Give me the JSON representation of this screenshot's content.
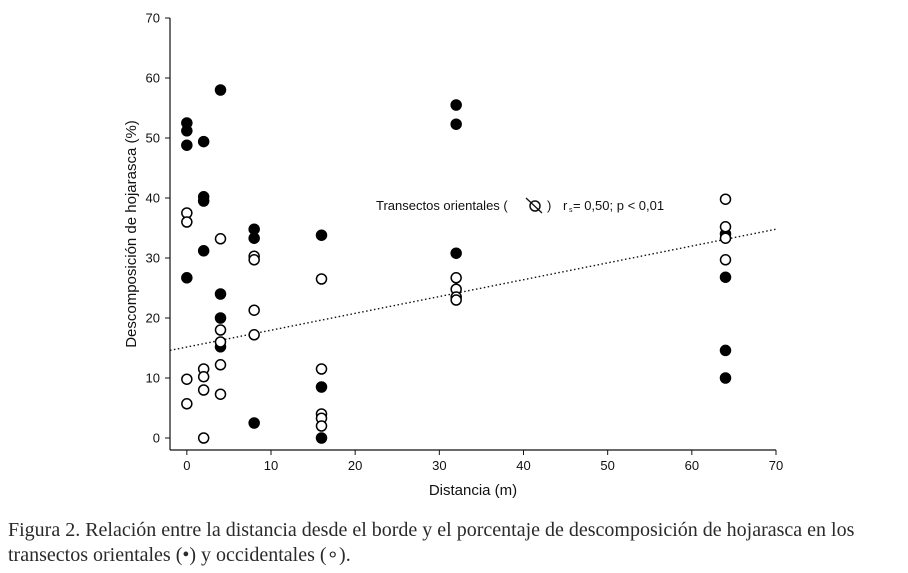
{
  "caption": "Figura 2. Relación entre la distancia desde el borde y el porcentaje de descomposición de hojarasca en los transectos orientales (•) y occidentales (∘).",
  "chart_data": {
    "type": "scatter",
    "xlabel": "Distancia (m)",
    "ylabel": "Descomposición de hojarasca (%)",
    "xlim": [
      -2,
      70
    ],
    "ylim": [
      -2,
      70
    ],
    "xticks": [
      "0",
      "10",
      "20",
      "30",
      "40",
      "50",
      "60",
      "70"
    ],
    "yticks": [
      "0",
      "10",
      "20",
      "30",
      "40",
      "50",
      "60",
      "70"
    ],
    "grid": false,
    "series": [
      {
        "marker": "filled-circle",
        "color": "#000000",
        "points": [
          [
            0,
            52.5
          ],
          [
            0,
            51.2
          ],
          [
            0,
            48.8
          ],
          [
            0,
            26.7
          ],
          [
            2,
            49.4
          ],
          [
            2,
            40.2
          ],
          [
            2,
            39.5
          ],
          [
            2,
            31.2
          ],
          [
            4,
            58.0
          ],
          [
            4,
            24.0
          ],
          [
            4,
            20.0
          ],
          [
            4,
            15.2
          ],
          [
            8,
            34.8
          ],
          [
            8,
            33.3
          ],
          [
            8,
            2.5
          ],
          [
            16,
            33.8
          ],
          [
            16,
            8.5
          ],
          [
            16,
            0.0
          ],
          [
            32,
            55.5
          ],
          [
            32,
            52.3
          ],
          [
            32,
            30.8
          ],
          [
            64,
            34.0
          ],
          [
            64,
            26.8
          ],
          [
            64,
            14.6
          ],
          [
            64,
            10.0
          ]
        ]
      },
      {
        "marker": "open-circle",
        "color": "#000000",
        "points": [
          [
            0,
            37.5
          ],
          [
            0,
            36.0
          ],
          [
            0,
            9.8
          ],
          [
            0,
            5.7
          ],
          [
            2,
            11.5
          ],
          [
            2,
            10.2
          ],
          [
            2,
            8.0
          ],
          [
            2,
            0.0
          ],
          [
            4,
            33.2
          ],
          [
            4,
            18.0
          ],
          [
            4,
            16.0
          ],
          [
            4,
            12.2
          ],
          [
            4,
            7.3
          ],
          [
            8,
            30.3
          ],
          [
            8,
            29.7
          ],
          [
            8,
            21.3
          ],
          [
            8,
            17.2
          ],
          [
            16,
            26.5
          ],
          [
            16,
            11.5
          ],
          [
            16,
            4.0
          ],
          [
            16,
            3.3
          ],
          [
            16,
            2.0
          ],
          [
            32,
            26.7
          ],
          [
            32,
            24.8
          ],
          [
            32,
            23.5
          ],
          [
            32,
            23.0
          ],
          [
            64,
            39.8
          ],
          [
            64,
            35.2
          ],
          [
            64,
            33.3
          ],
          [
            64,
            29.7
          ]
        ]
      }
    ],
    "trendline": {
      "style": "dotted",
      "x": [
        -2,
        70
      ],
      "y": [
        14.6,
        34.8
      ]
    },
    "annotation": {
      "text_before": "Transectos orientales (",
      "text_after": ")",
      "subscript": "s",
      "r_label": "r",
      "stat_text": " = 0,50; p < 0,01"
    }
  }
}
